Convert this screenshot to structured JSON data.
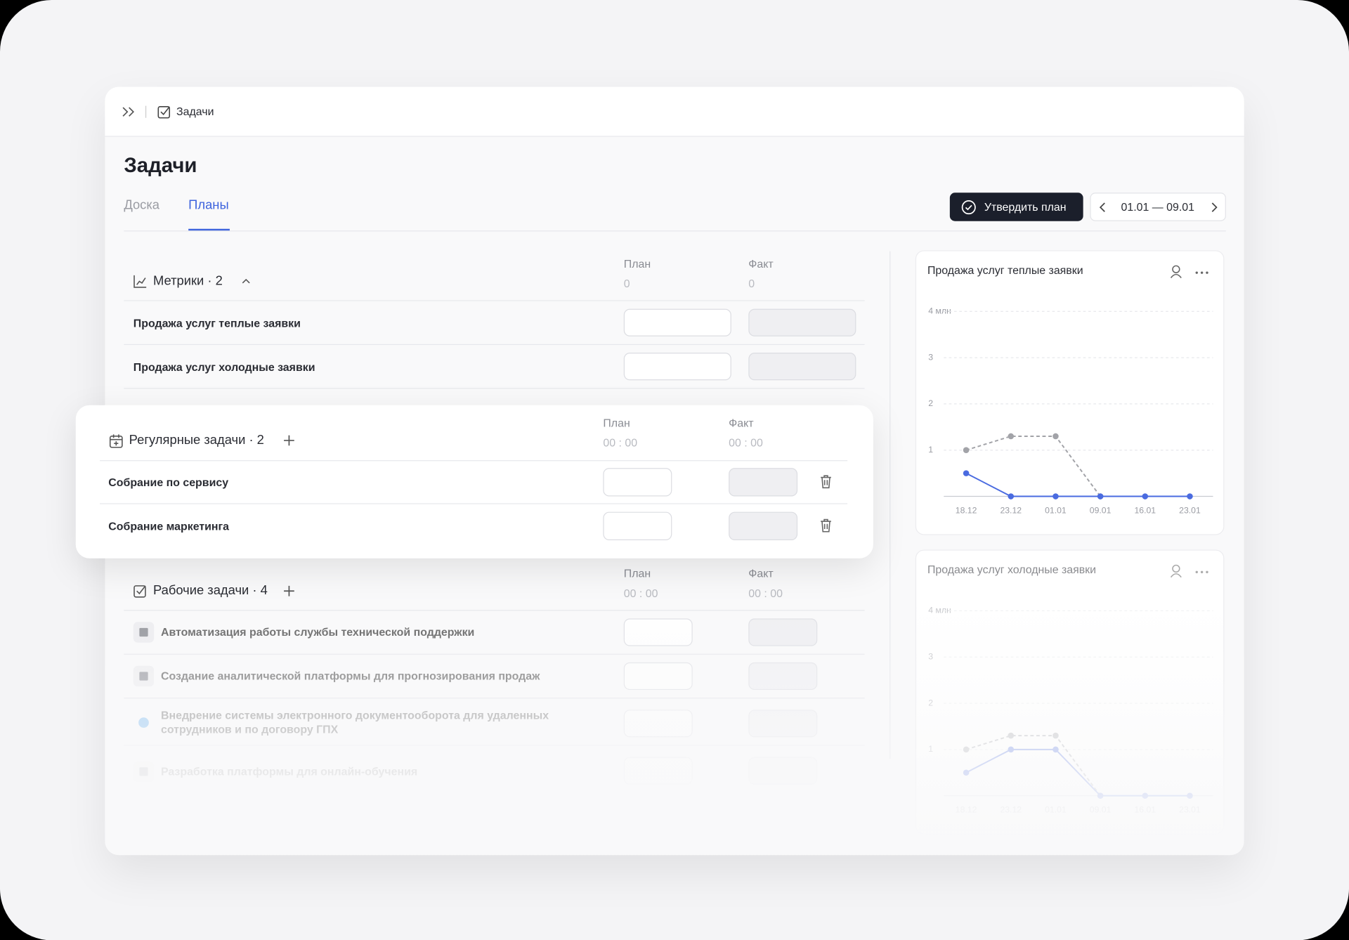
{
  "breadcrumb": "Задачи",
  "header": {
    "title": "Задачи"
  },
  "tabs": [
    "Доска",
    "Планы"
  ],
  "approve_button": "Утвердить план",
  "date_range": "01.01 — 09.01",
  "metrics": {
    "title": "Метрики · 2",
    "plan_label": "План",
    "fact_label": "Факт",
    "plan_total": "0",
    "fact_total": "0",
    "rows": [
      "Продажа услуг теплые заявки",
      "Продажа услуг холодные заявки"
    ]
  },
  "regular": {
    "title": "Регулярные задачи · 2",
    "plan_label": "План",
    "fact_label": "Факт",
    "plan_total": "00 : 00",
    "fact_total": "00 : 00",
    "rows": [
      "Собрание по сервису",
      "Собрание маркетинга"
    ]
  },
  "work": {
    "title": "Рабочие задачи · 4",
    "plan_label": "План",
    "fact_label": "Факт",
    "plan_total": "00 : 00",
    "fact_total": "00 : 00",
    "rows": [
      "Автоматизация работы службы технической поддержки",
      "Создание аналитической платформы для прогнозирования продаж",
      "Внедрение системы электронного документооборота для удаленных сотрудников и по договору ГПХ",
      "Разработка платформы для онлайн-обучения"
    ]
  },
  "chart_data": [
    {
      "type": "line",
      "title": "Продажа услуг теплые заявки",
      "categories": [
        "18.12",
        "23.12",
        "01.01",
        "09.01",
        "16.01",
        "23.01"
      ],
      "ylim": [
        0,
        4
      ],
      "yticks": [
        {
          "value": 4,
          "label": "4 млн"
        },
        3,
        2,
        1
      ],
      "grid": true,
      "series": [
        {
          "color": "#a2a3a8",
          "dashed": true,
          "values": [
            1,
            1.3,
            1.3,
            0,
            null,
            null
          ]
        },
        {
          "color": "#4a6be0",
          "dashed": false,
          "values": [
            0.5,
            0,
            0,
            0,
            0,
            0
          ]
        }
      ]
    },
    {
      "type": "line",
      "title": "Продажа услуг холодные заявки",
      "categories": [
        "18.12",
        "23.12",
        "01.01",
        "09.01",
        "16.01",
        "23.01"
      ],
      "ylim": [
        0,
        4
      ],
      "yticks": [
        {
          "value": 4,
          "label": "4 млн"
        },
        3,
        2,
        1
      ],
      "grid": true,
      "series": [
        {
          "color": "#a2a3a8",
          "dashed": true,
          "values": [
            1,
            1.3,
            1.3,
            0,
            null,
            null
          ]
        },
        {
          "color": "#4a6be0",
          "dashed": false,
          "values": [
            0.5,
            1,
            1,
            0,
            0,
            0
          ]
        }
      ]
    }
  ]
}
